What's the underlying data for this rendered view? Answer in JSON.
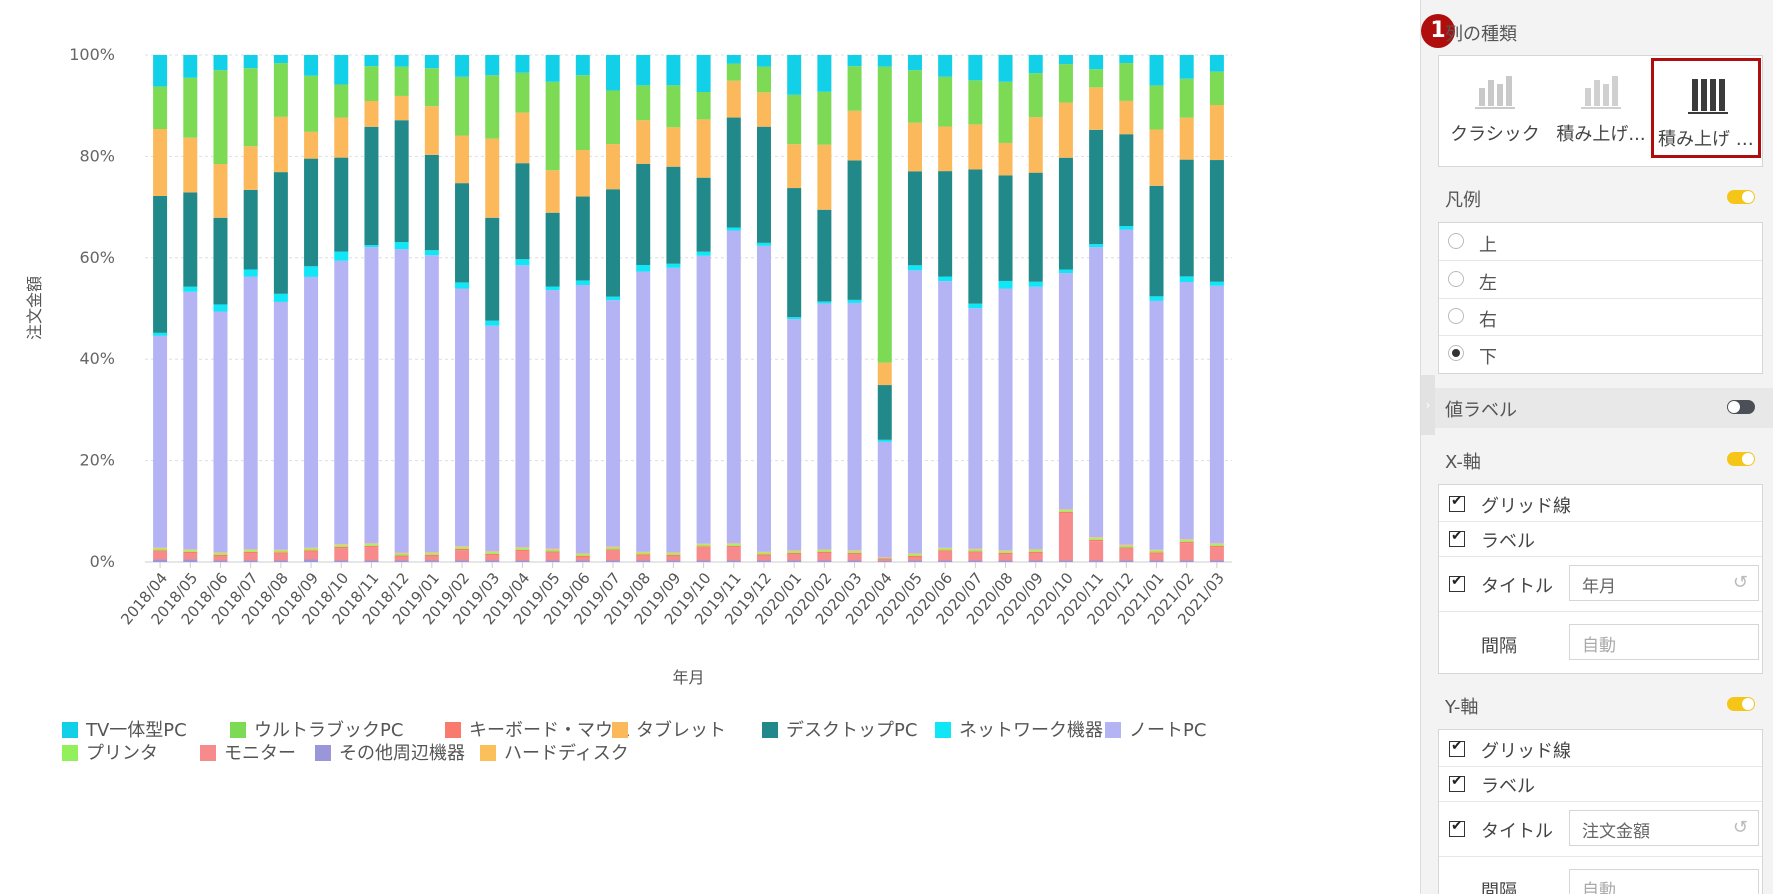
{
  "chart_data": {
    "type": "bar",
    "stacked": "100%",
    "xlabel": "年月",
    "ylabel": "注文金額",
    "ylim": [
      0,
      100
    ],
    "yticks": [
      "0%",
      "20%",
      "40%",
      "60%",
      "80%",
      "100%"
    ],
    "grid": true,
    "legend_position": "bottom",
    "categories": [
      "2018/04",
      "2018/05",
      "2018/06",
      "2018/07",
      "2018/08",
      "2018/09",
      "2018/10",
      "2018/11",
      "2018/12",
      "2019/01",
      "2019/02",
      "2019/03",
      "2019/04",
      "2019/05",
      "2019/06",
      "2019/07",
      "2019/08",
      "2019/09",
      "2019/10",
      "2019/11",
      "2019/12",
      "2020/01",
      "2020/02",
      "2020/03",
      "2020/04",
      "2020/05",
      "2020/06",
      "2020/07",
      "2020/08",
      "2020/09",
      "2020/10",
      "2020/11",
      "2020/12",
      "2021/01",
      "2021/02",
      "2021/03"
    ],
    "series": [
      {
        "name": "その他周辺機器",
        "color": "#9b95d9",
        "values": [
          0.5,
          0.5,
          0.3,
          0.3,
          0.3,
          0.5,
          0.3,
          0.3,
          0.3,
          0.3,
          0.3,
          0.3,
          0.3,
          0.3,
          0.3,
          0.3,
          0.3,
          0.3,
          0.3,
          0.3,
          0.3,
          0.3,
          0.3,
          0.3,
          0.2,
          0.3,
          0.3,
          0.3,
          0.3,
          0.3,
          0.3,
          0.3,
          0.3,
          0.3,
          0.3,
          0.3
        ]
      },
      {
        "name": "モニター",
        "color": "#f78b8b",
        "values": [
          1.5,
          1.2,
          0.8,
          1.4,
          1.3,
          1.5,
          2.4,
          2.6,
          0.7,
          0.8,
          2.0,
          1.0,
          1.8,
          1.5,
          0.6,
          1.9,
          0.9,
          0.8,
          2.5,
          2.6,
          0.9,
          1.2,
          1.4,
          1.2,
          0.3,
          0.6,
          1.7,
          1.5,
          1.2,
          1.4,
          9.3,
          3.8,
          2.3,
          1.3,
          3.4,
          2.6
        ]
      },
      {
        "name": "キーボード・マウス",
        "color": "#f97b6e",
        "values": [
          0.3,
          0.3,
          0.3,
          0.3,
          0.3,
          0.3,
          0.3,
          0.3,
          0.3,
          0.3,
          0.3,
          0.3,
          0.3,
          0.3,
          0.3,
          0.3,
          0.3,
          0.3,
          0.3,
          0.3,
          0.3,
          0.3,
          0.3,
          0.3,
          0.2,
          0.3,
          0.3,
          0.3,
          0.3,
          0.3,
          0.3,
          0.3,
          0.3,
          0.3,
          0.3,
          0.3
        ]
      },
      {
        "name": "プリンタ",
        "color": "#92f15a",
        "values": [
          0.3,
          0.3,
          0.3,
          0.3,
          0.3,
          0.3,
          0.3,
          0.3,
          0.3,
          0.3,
          0.3,
          0.3,
          0.3,
          0.3,
          0.3,
          0.3,
          0.3,
          0.3,
          0.3,
          0.3,
          0.3,
          0.3,
          0.3,
          0.3,
          0.1,
          0.3,
          0.3,
          0.3,
          0.3,
          0.3,
          0.3,
          0.3,
          0.3,
          0.3,
          0.3,
          0.3
        ]
      },
      {
        "name": "ハードディスク",
        "color": "#fcc05a",
        "values": [
          0.2,
          0.2,
          0.2,
          0.2,
          0.2,
          0.2,
          0.2,
          0.2,
          0.2,
          0.2,
          0.2,
          0.2,
          0.2,
          0.2,
          0.2,
          0.2,
          0.2,
          0.2,
          0.2,
          0.2,
          0.2,
          0.2,
          0.2,
          0.2,
          0.1,
          0.2,
          0.2,
          0.2,
          0.2,
          0.2,
          0.2,
          0.2,
          0.2,
          0.2,
          0.2,
          0.2
        ]
      },
      {
        "name": "ノートPC",
        "color": "#b4b4f5",
        "values": [
          41.8,
          50.8,
          47.5,
          53.8,
          48.9,
          53.6,
          55.8,
          58.6,
          60.1,
          58.6,
          50.9,
          44.5,
          55.8,
          51.2,
          53.1,
          48.7,
          55.4,
          56.3,
          56.8,
          62.0,
          60.6,
          45.9,
          48.8,
          48.8,
          22.8,
          56.0,
          52.6,
          47.5,
          51.8,
          52.0,
          46.7,
          57.4,
          62.5,
          49.1,
          50.9,
          51.0
        ]
      },
      {
        "name": "ネットワーク機器",
        "color": "#10e6f5",
        "values": [
          0.6,
          1.0,
          1.4,
          1.4,
          1.6,
          2.1,
          1.8,
          0.4,
          1.4,
          1.0,
          1.2,
          1.0,
          1.2,
          0.7,
          0.9,
          0.7,
          1.3,
          0.8,
          0.8,
          0.6,
          0.6,
          0.4,
          0.4,
          0.6,
          0.4,
          1.0,
          0.9,
          0.9,
          1.5,
          1.0,
          0.7,
          0.6,
          0.7,
          0.9,
          1.1,
          0.8
        ]
      },
      {
        "name": "デスクトップPC",
        "color": "#21898a",
        "values": [
          27.0,
          18.6,
          17.1,
          15.7,
          24.0,
          21.3,
          18.5,
          23.4,
          24.1,
          18.8,
          19.6,
          20.3,
          19.0,
          14.6,
          16.6,
          21.2,
          20.0,
          19.2,
          14.6,
          21.8,
          23.0,
          25.6,
          18.2,
          27.5,
          10.8,
          18.6,
          20.8,
          26.5,
          20.9,
          21.6,
          22.1,
          22.6,
          18.2,
          21.8,
          23.1,
          24.1
        ]
      },
      {
        "name": "タブレット",
        "color": "#fbb95b",
        "values": [
          13.2,
          10.8,
          10.6,
          8.6,
          10.9,
          5.3,
          7.9,
          5.1,
          4.8,
          9.6,
          9.4,
          15.6,
          10.0,
          8.4,
          9.2,
          8.9,
          8.6,
          7.8,
          11.5,
          7.3,
          6.8,
          8.7,
          12.9,
          9.8,
          4.4,
          9.6,
          8.8,
          8.9,
          6.4,
          11.0,
          10.9,
          8.4,
          6.6,
          11.1,
          8.3,
          10.9
        ]
      },
      {
        "name": "ウルトラブックPC",
        "color": "#7cda55",
        "values": [
          8.4,
          11.8,
          18.5,
          15.4,
          10.6,
          11.1,
          6.5,
          6.9,
          5.8,
          7.5,
          11.6,
          12.5,
          7.9,
          17.5,
          14.8,
          10.6,
          6.9,
          8.3,
          5.4,
          3.4,
          5.1,
          9.8,
          10.5,
          8.8,
          58.4,
          10.4,
          9.8,
          8.7,
          12.1,
          8.7,
          7.6,
          3.6,
          7.5,
          8.7,
          7.7,
          6.6
        ]
      },
      {
        "name": "TV一体型PC",
        "color": "#12d0e8",
        "values": [
          6.2,
          4.5,
          3.0,
          2.6,
          1.6,
          4.1,
          5.8,
          2.2,
          2.3,
          2.6,
          4.3,
          4.0,
          3.5,
          5.3,
          4.0,
          7.0,
          6.0,
          6.0,
          7.3,
          1.7,
          2.3,
          7.9,
          7.3,
          2.2,
          2.3,
          3.0,
          4.3,
          5.0,
          5.3,
          3.6,
          1.8,
          2.8,
          1.6,
          6.0,
          4.7,
          3.3
        ]
      }
    ],
    "legend_order": [
      "TV一体型PC",
      "ウルトラブックPC",
      "キーボード・マウス",
      "タブレット",
      "デスクトップPC",
      "ネットワーク機器",
      "ノートPC",
      "プリンタ",
      "モニター",
      "その他周辺機器",
      "ハードディスク"
    ]
  },
  "panel": {
    "step_badge": "1",
    "column_type": {
      "title": "列の種類",
      "options": [
        "クラシック",
        "積み上げ...",
        "積み上げ 1..."
      ],
      "selected_index": 2
    },
    "legend": {
      "title": "凡例",
      "enabled": true,
      "options": [
        "上",
        "左",
        "右",
        "下"
      ],
      "selected": "下"
    },
    "value_labels": {
      "title": "値ラベル",
      "enabled": false
    },
    "x_axis": {
      "title": "X-軸",
      "enabled": true,
      "gridlines_label": "グリッド線",
      "labels_label": "ラベル",
      "title_label": "タイトル",
      "title_value": "年月",
      "interval_label": "間隔",
      "interval_placeholder": "自動"
    },
    "y_axis": {
      "title": "Y-軸",
      "enabled": true,
      "gridlines_label": "グリッド線",
      "labels_label": "ラベル",
      "title_label": "タイトル",
      "title_value": "注文金額",
      "interval_label": "間隔",
      "interval_placeholder": "自動"
    },
    "colors": {
      "accent": "#b00d0d",
      "toggle_on": "#f5c518",
      "toggle_off": "#4a4f58"
    }
  }
}
